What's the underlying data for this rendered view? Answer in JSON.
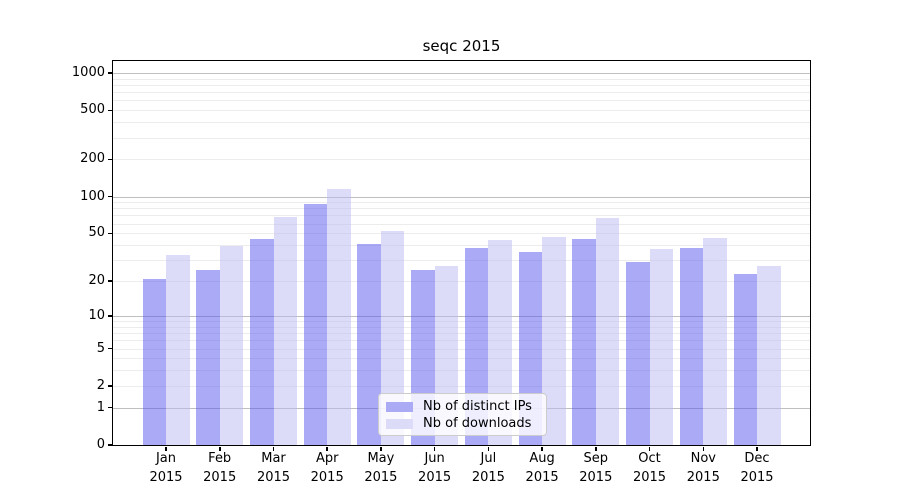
{
  "title": "seqc 2015",
  "chart_data": {
    "type": "bar",
    "title": "seqc 2015",
    "categories": [
      "Jan 2015",
      "Feb 2015",
      "Mar 2015",
      "Apr 2015",
      "May 2015",
      "Jun 2015",
      "Jul 2015",
      "Aug 2015",
      "Sep 2015",
      "Oct 2015",
      "Nov 2015",
      "Dec 2015"
    ],
    "series": [
      {
        "name": "Nb of distinct IPs",
        "color": "#aaaaf5",
        "fill": "rgba(85,85,240,0.5)",
        "values": [
          21,
          25,
          45,
          87,
          41,
          25,
          38,
          35,
          45,
          29,
          38,
          23
        ]
      },
      {
        "name": "Nb of downloads",
        "color": "#dcdcf8",
        "fill": "rgba(185,185,242,0.5)",
        "values": [
          33,
          39,
          68,
          115,
          52,
          27,
          44,
          47,
          67,
          37,
          46,
          27
        ]
      }
    ],
    "xlabel": "",
    "ylabel": "",
    "yscale": "symlog: y = log10(1 + value)",
    "ylim": [
      0,
      1250
    ],
    "yticks": [
      0,
      1,
      2,
      5,
      10,
      20,
      50,
      100,
      200,
      500,
      1000
    ],
    "major_gridline_values": [
      1,
      10,
      100,
      1000
    ],
    "minor_gridline_values": [
      3,
      4,
      6,
      7,
      8,
      9,
      30,
      40,
      60,
      70,
      80,
      90,
      300,
      400,
      600,
      700,
      800,
      900
    ],
    "grid": true,
    "legend": {
      "position": "lower center",
      "items": [
        "Nb of distinct IPs",
        "Nb of downloads"
      ]
    }
  }
}
